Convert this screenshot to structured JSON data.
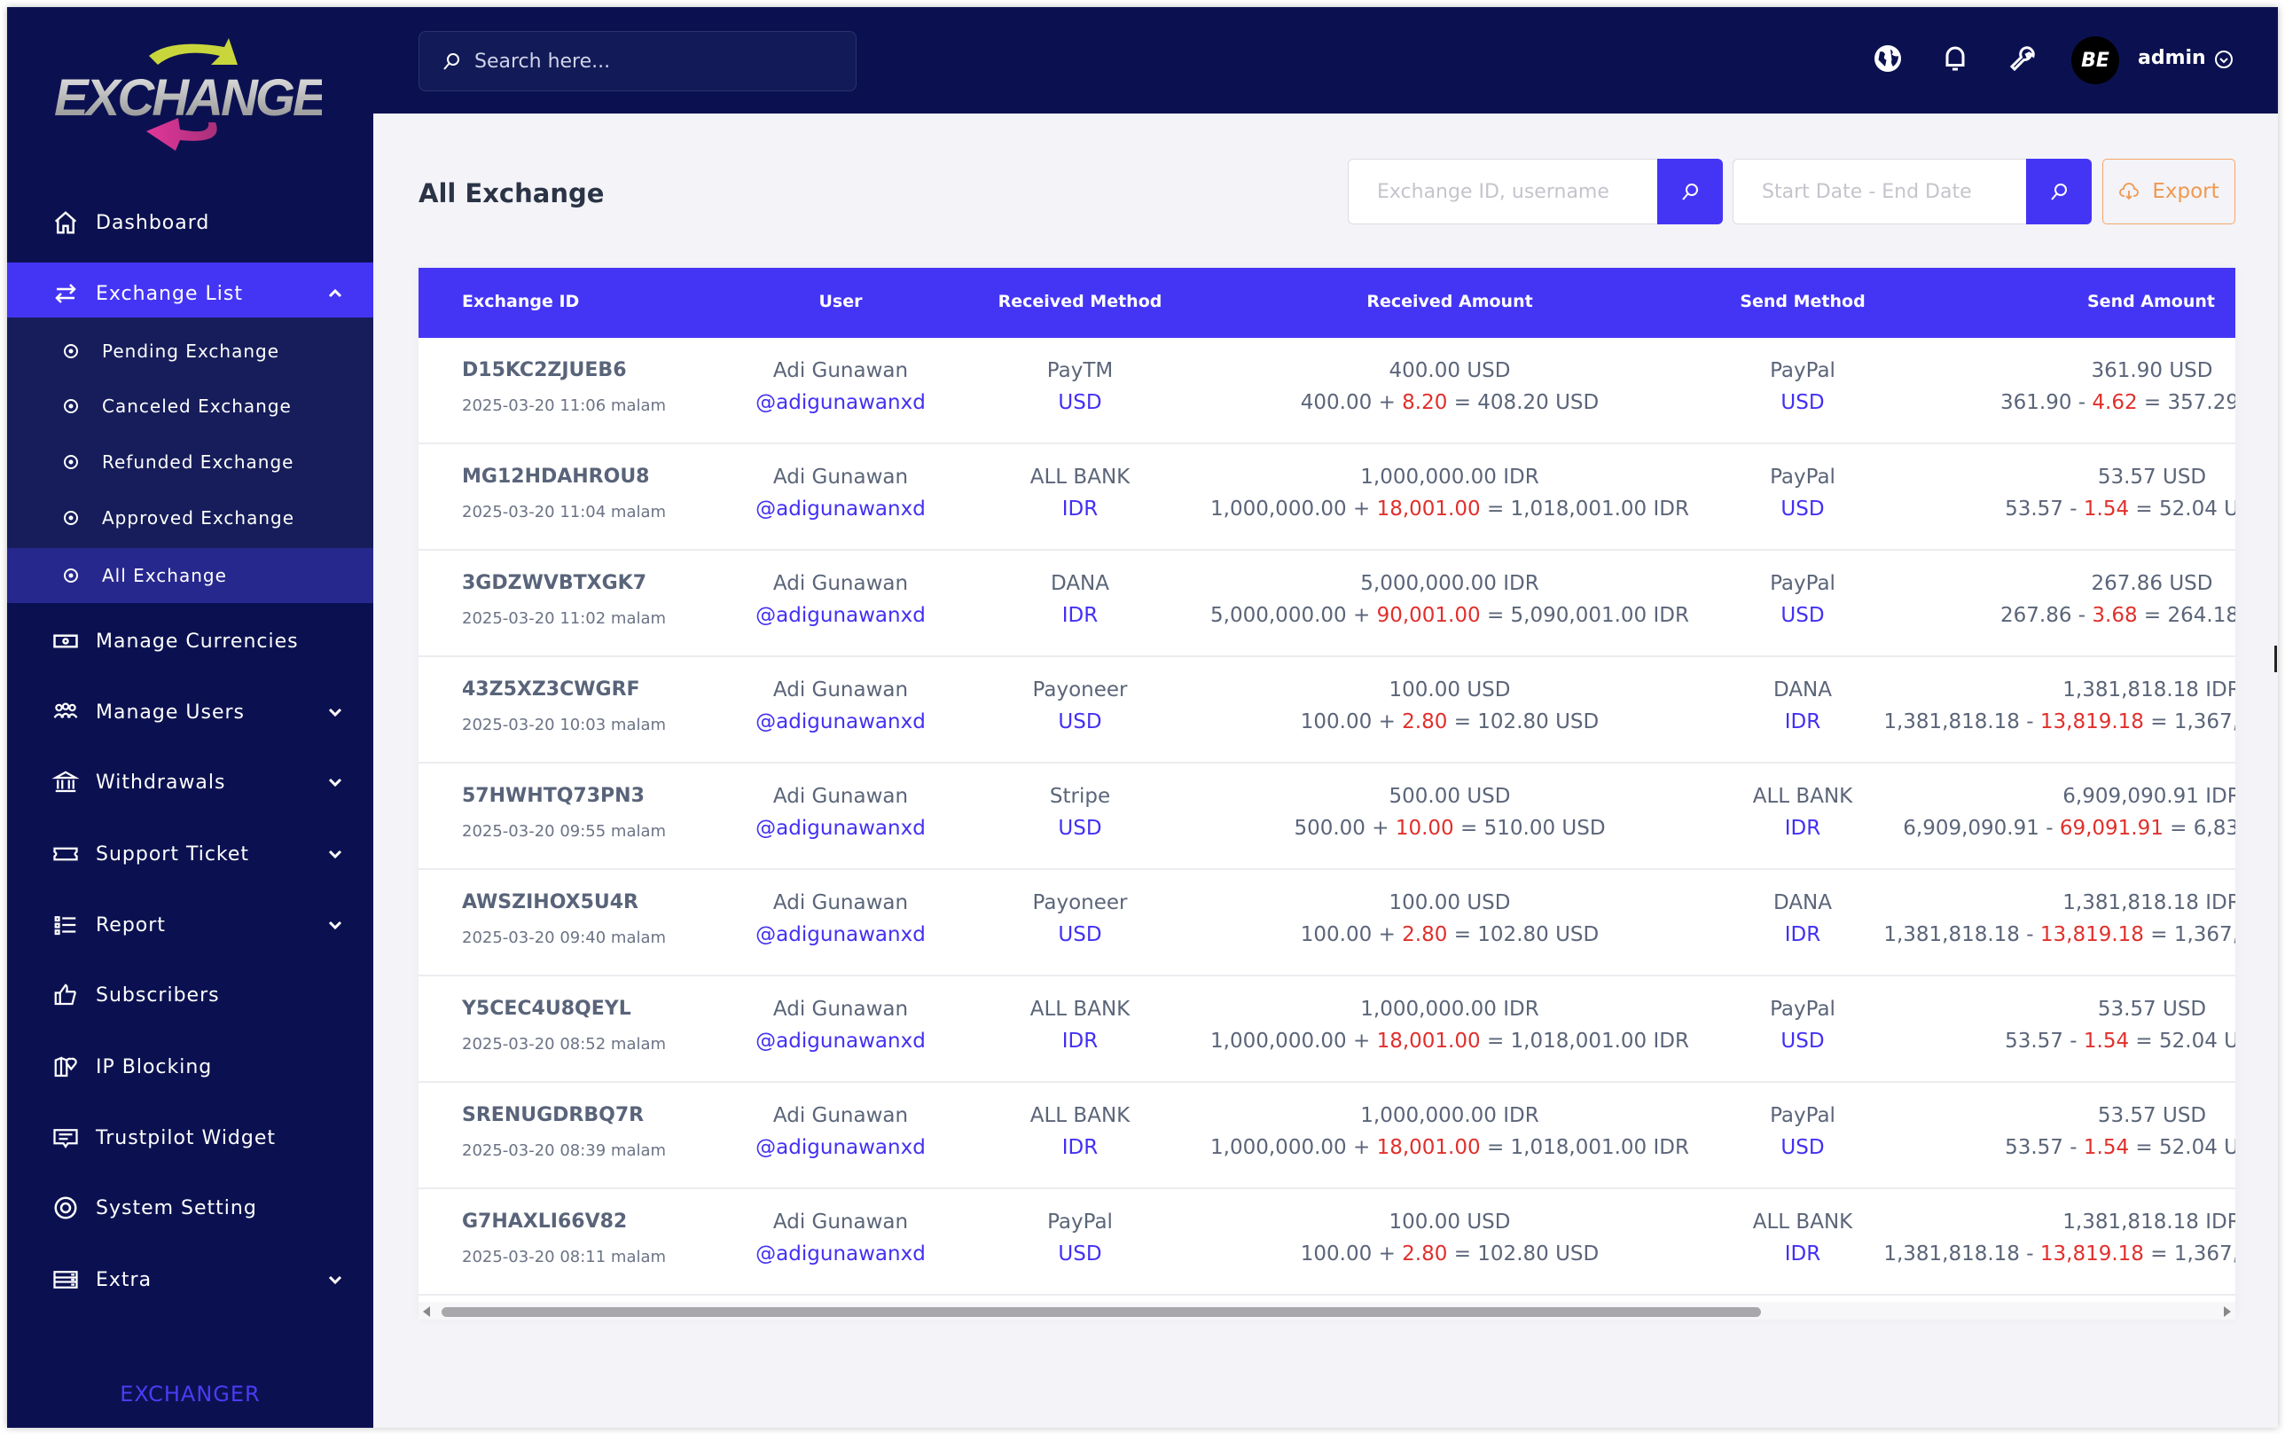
{
  "logo": {
    "text": "EXCHANGE"
  },
  "sidebar": {
    "items": [
      {
        "label": "Dashboard",
        "icon": "home-icon"
      },
      {
        "label": "Exchange List",
        "icon": "exchange-arrows-icon",
        "expanded": true
      },
      {
        "label": "Manage Currencies",
        "icon": "money-icon"
      },
      {
        "label": "Manage Users",
        "icon": "users-icon"
      },
      {
        "label": "Withdrawals",
        "icon": "bank-icon"
      },
      {
        "label": "Support Ticket",
        "icon": "ticket-icon"
      },
      {
        "label": "Report",
        "icon": "list-icon"
      },
      {
        "label": "Subscribers",
        "icon": "thumbs-up-icon"
      },
      {
        "label": "IP Blocking",
        "icon": "map-pin-icon"
      },
      {
        "label": "Trustpilot Widget",
        "icon": "message-icon"
      },
      {
        "label": "System Setting",
        "icon": "lifebuoy-icon"
      },
      {
        "label": "Extra",
        "icon": "server-icon"
      }
    ],
    "subitems": [
      {
        "label": "Pending Exchange"
      },
      {
        "label": "Canceled Exchange"
      },
      {
        "label": "Refunded Exchange"
      },
      {
        "label": "Approved Exchange"
      },
      {
        "label": "All Exchange",
        "active": true
      }
    ],
    "footer": "EXCHANGER"
  },
  "topbar": {
    "search_placeholder": "Search here...",
    "user": "admin",
    "avatar_text": "BE"
  },
  "page": {
    "title": "All Exchange",
    "filter_placeholder": "Exchange ID, username",
    "date_placeholder": "Start Date - End Date",
    "export_label": "Export"
  },
  "colors": {
    "sidebar": "#0b1150",
    "accent": "#4435f5",
    "fee": "#e0302c",
    "link": "#4330f3",
    "export": "#f0994f"
  },
  "table": {
    "headers": [
      "Exchange ID",
      "User",
      "Received Method",
      "Received Amount",
      "Send Method",
      "Send Amount"
    ],
    "rows": [
      {
        "id": "D15KC2ZJUEB6",
        "time": "2025-03-20 11:06 malam",
        "name": "Adi Gunawan",
        "username": "@adigunawanxd",
        "rm": "PayTM",
        "rc": "USD",
        "ra": "400.00 USD",
        "rb": "400.00",
        "rf": "8.20",
        "rt": "408.20 USD",
        "sm": "PayPal",
        "sc": "USD",
        "sa": "361.90 USD",
        "sb": "361.90",
        "sf": "4.62",
        "st": "357.29"
      },
      {
        "id": "MG12HDAHROU8",
        "time": "2025-03-20 11:04 malam",
        "name": "Adi Gunawan",
        "username": "@adigunawanxd",
        "rm": "ALL BANK",
        "rc": "IDR",
        "ra": "1,000,000.00 IDR",
        "rb": "1,000,000.00",
        "rf": "18,001.00",
        "rt": "1,018,001.00 IDR",
        "sm": "PayPal",
        "sc": "USD",
        "sa": "53.57 USD",
        "sb": "53.57",
        "sf": "1.54",
        "st": "52.04 U"
      },
      {
        "id": "3GDZWVBTXGK7",
        "time": "2025-03-20 11:02 malam",
        "name": "Adi Gunawan",
        "username": "@adigunawanxd",
        "rm": "DANA",
        "rc": "IDR",
        "ra": "5,000,000.00 IDR",
        "rb": "5,000,000.00",
        "rf": "90,001.00",
        "rt": "5,090,001.00 IDR",
        "sm": "PayPal",
        "sc": "USD",
        "sa": "267.86 USD",
        "sb": "267.86",
        "sf": "3.68",
        "st": "264.18"
      },
      {
        "id": "43Z5XZ3CWGRF",
        "time": "2025-03-20 10:03 malam",
        "name": "Adi Gunawan",
        "username": "@adigunawanxd",
        "rm": "Payoneer",
        "rc": "USD",
        "ra": "100.00 USD",
        "rb": "100.00",
        "rf": "2.80",
        "rt": "102.80 USD",
        "sm": "DANA",
        "sc": "IDR",
        "sa": "1,381,818.18 IDR",
        "sb": "1,381,818.18",
        "sf": "13,819.18",
        "st": "1,367,"
      },
      {
        "id": "57HWHTQ73PN3",
        "time": "2025-03-20 09:55 malam",
        "name": "Adi Gunawan",
        "username": "@adigunawanxd",
        "rm": "Stripe",
        "rc": "USD",
        "ra": "500.00 USD",
        "rb": "500.00",
        "rf": "10.00",
        "rt": "510.00 USD",
        "sm": "ALL BANK",
        "sc": "IDR",
        "sa": "6,909,090.91 IDR",
        "sb": "6,909,090.91",
        "sf": "69,091.91",
        "st": "6,83"
      },
      {
        "id": "AWSZIHOX5U4R",
        "time": "2025-03-20 09:40 malam",
        "name": "Adi Gunawan",
        "username": "@adigunawanxd",
        "rm": "Payoneer",
        "rc": "USD",
        "ra": "100.00 USD",
        "rb": "100.00",
        "rf": "2.80",
        "rt": "102.80 USD",
        "sm": "DANA",
        "sc": "IDR",
        "sa": "1,381,818.18 IDR",
        "sb": "1,381,818.18",
        "sf": "13,819.18",
        "st": "1,367,"
      },
      {
        "id": "Y5CEC4U8QEYL",
        "time": "2025-03-20 08:52 malam",
        "name": "Adi Gunawan",
        "username": "@adigunawanxd",
        "rm": "ALL BANK",
        "rc": "IDR",
        "ra": "1,000,000.00 IDR",
        "rb": "1,000,000.00",
        "rf": "18,001.00",
        "rt": "1,018,001.00 IDR",
        "sm": "PayPal",
        "sc": "USD",
        "sa": "53.57 USD",
        "sb": "53.57",
        "sf": "1.54",
        "st": "52.04 U"
      },
      {
        "id": "SRENUGDRBQ7R",
        "time": "2025-03-20 08:39 malam",
        "name": "Adi Gunawan",
        "username": "@adigunawanxd",
        "rm": "ALL BANK",
        "rc": "IDR",
        "ra": "1,000,000.00 IDR",
        "rb": "1,000,000.00",
        "rf": "18,001.00",
        "rt": "1,018,001.00 IDR",
        "sm": "PayPal",
        "sc": "USD",
        "sa": "53.57 USD",
        "sb": "53.57",
        "sf": "1.54",
        "st": "52.04 U"
      },
      {
        "id": "G7HAXLI66V82",
        "time": "2025-03-20 08:11 malam",
        "name": "Adi Gunawan",
        "username": "@adigunawanxd",
        "rm": "PayPal",
        "rc": "USD",
        "ra": "100.00 USD",
        "rb": "100.00",
        "rf": "2.80",
        "rt": "102.80 USD",
        "sm": "ALL BANK",
        "sc": "IDR",
        "sa": "1,381,818.18 IDR",
        "sb": "1,381,818.18",
        "sf": "13,819.18",
        "st": "1,367,"
      }
    ]
  }
}
